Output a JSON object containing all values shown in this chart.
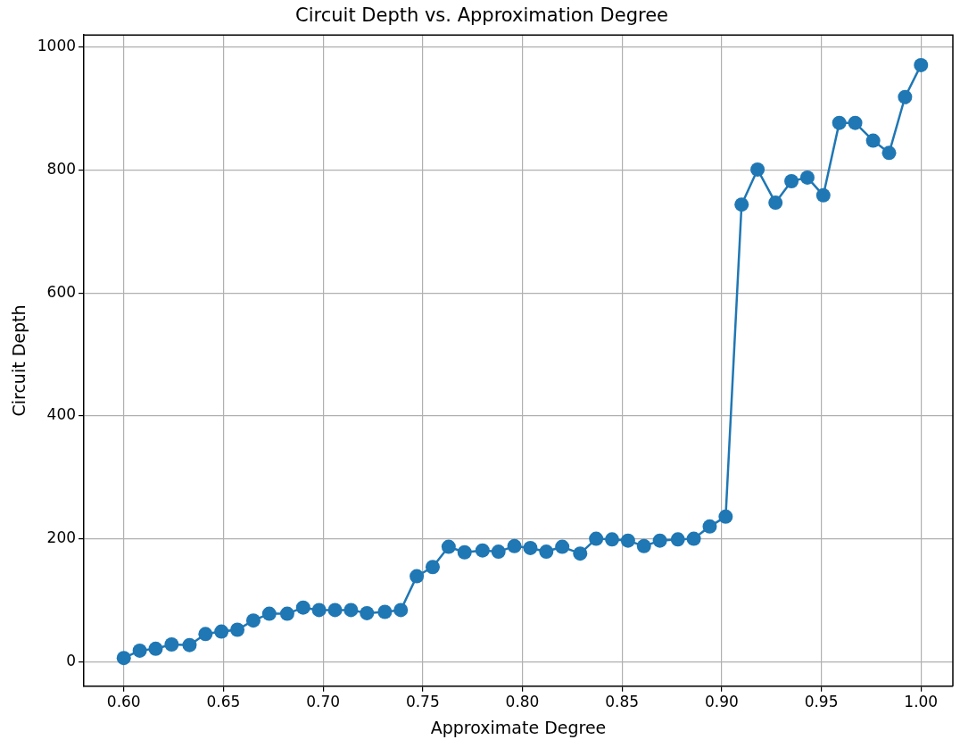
{
  "chart_data": {
    "type": "line",
    "title": "Circuit Depth vs. Approximation Degree",
    "xlabel": "Approximate Degree",
    "ylabel": "Circuit Depth",
    "x": [
      0.6,
      0.608,
      0.616,
      0.624,
      0.633,
      0.641,
      0.649,
      0.657,
      0.665,
      0.673,
      0.682,
      0.69,
      0.698,
      0.706,
      0.714,
      0.722,
      0.731,
      0.739,
      0.747,
      0.755,
      0.763,
      0.771,
      0.78,
      0.788,
      0.796,
      0.804,
      0.812,
      0.82,
      0.829,
      0.837,
      0.845,
      0.853,
      0.861,
      0.869,
      0.878,
      0.886,
      0.894,
      0.902,
      0.91,
      0.918,
      0.927,
      0.935,
      0.943,
      0.951,
      0.959,
      0.967,
      0.976,
      0.984,
      0.992,
      1.0
    ],
    "series": [
      {
        "color": "#1f77b4",
        "values": [
          6,
          18,
          21,
          28,
          27,
          45,
          49,
          52,
          67,
          78,
          78,
          88,
          84,
          84,
          84,
          79,
          81,
          84,
          139,
          154,
          187,
          178,
          181,
          179,
          188,
          185,
          179,
          187,
          176,
          200,
          199,
          197,
          188,
          197,
          199,
          200,
          220,
          236,
          744,
          801,
          747,
          782,
          788,
          759,
          877,
          877,
          848,
          828,
          919,
          971
        ]
      }
    ],
    "xlim": [
      0.58,
      1.016
    ],
    "ylim": [
      -40,
      1020
    ],
    "xticks": [
      {
        "value": 0.6,
        "label": "0.60"
      },
      {
        "value": 0.65,
        "label": "0.65"
      },
      {
        "value": 0.7,
        "label": "0.70"
      },
      {
        "value": 0.75,
        "label": "0.75"
      },
      {
        "value": 0.8,
        "label": "0.80"
      },
      {
        "value": 0.85,
        "label": "0.85"
      },
      {
        "value": 0.9,
        "label": "0.90"
      },
      {
        "value": 0.95,
        "label": "0.95"
      },
      {
        "value": 1.0,
        "label": "1.00"
      }
    ],
    "yticks": [
      0,
      200,
      400,
      600,
      800,
      1000
    ],
    "grid": true,
    "marker": "circle",
    "line_style": "solid",
    "legend": false
  }
}
